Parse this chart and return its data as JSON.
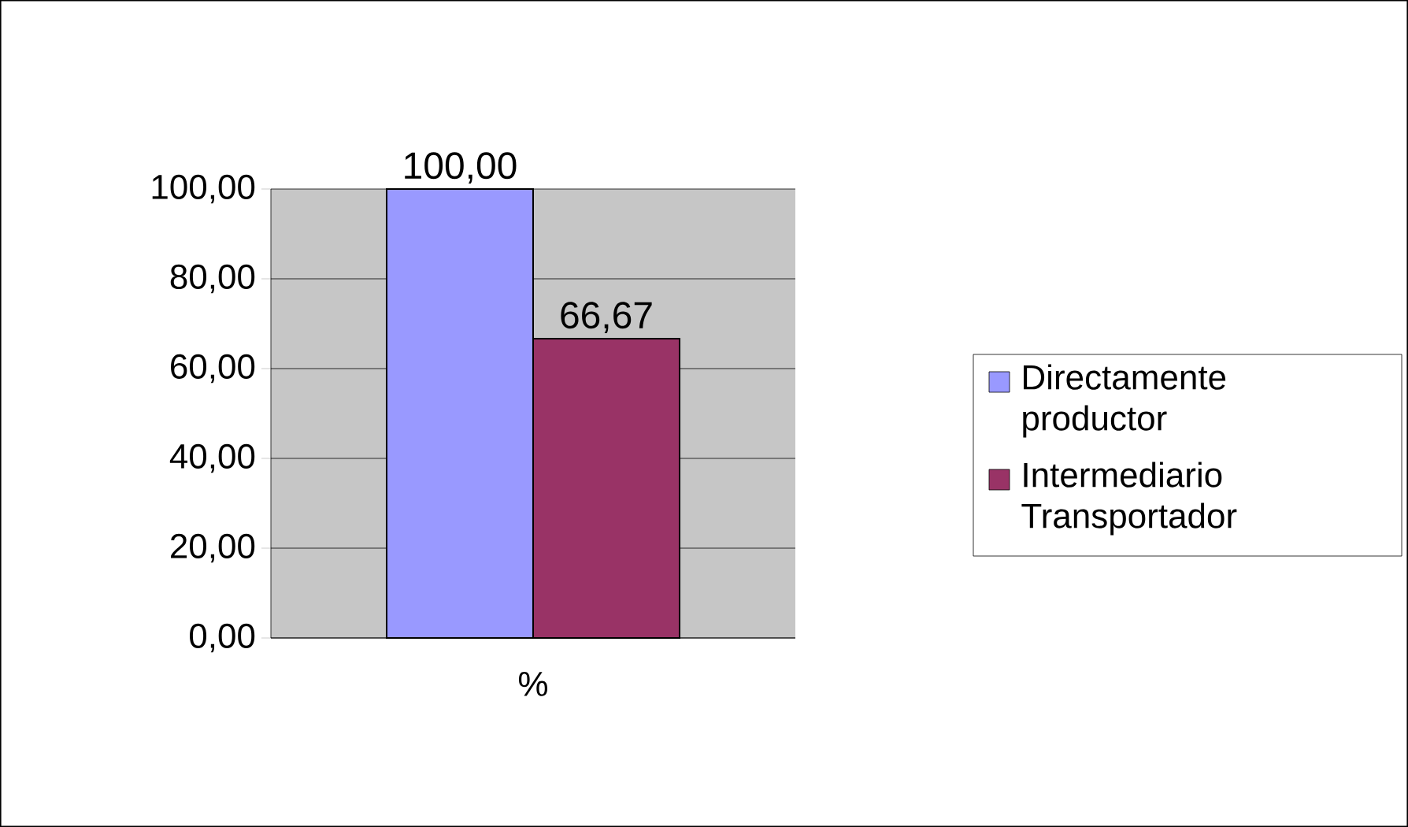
{
  "chart_data": {
    "type": "bar",
    "categories": [
      "%"
    ],
    "series": [
      {
        "name": "Directamente productor",
        "color": "#9999ff",
        "values": [
          100
        ],
        "value_labels": [
          "100,00"
        ]
      },
      {
        "name": "Intermediario Transportador",
        "color": "#993366",
        "values": [
          66.67
        ],
        "value_labels": [
          "66,67"
        ]
      }
    ],
    "ylim": [
      0,
      100
    ],
    "yticks": [
      {
        "value": 0,
        "label": "0,00"
      },
      {
        "value": 20,
        "label": "20,00"
      },
      {
        "value": 40,
        "label": "40,00"
      },
      {
        "value": 60,
        "label": "60,00"
      },
      {
        "value": 80,
        "label": "80,00"
      },
      {
        "value": 100,
        "label": "100,00"
      }
    ],
    "grid": "y",
    "legend": "right"
  }
}
